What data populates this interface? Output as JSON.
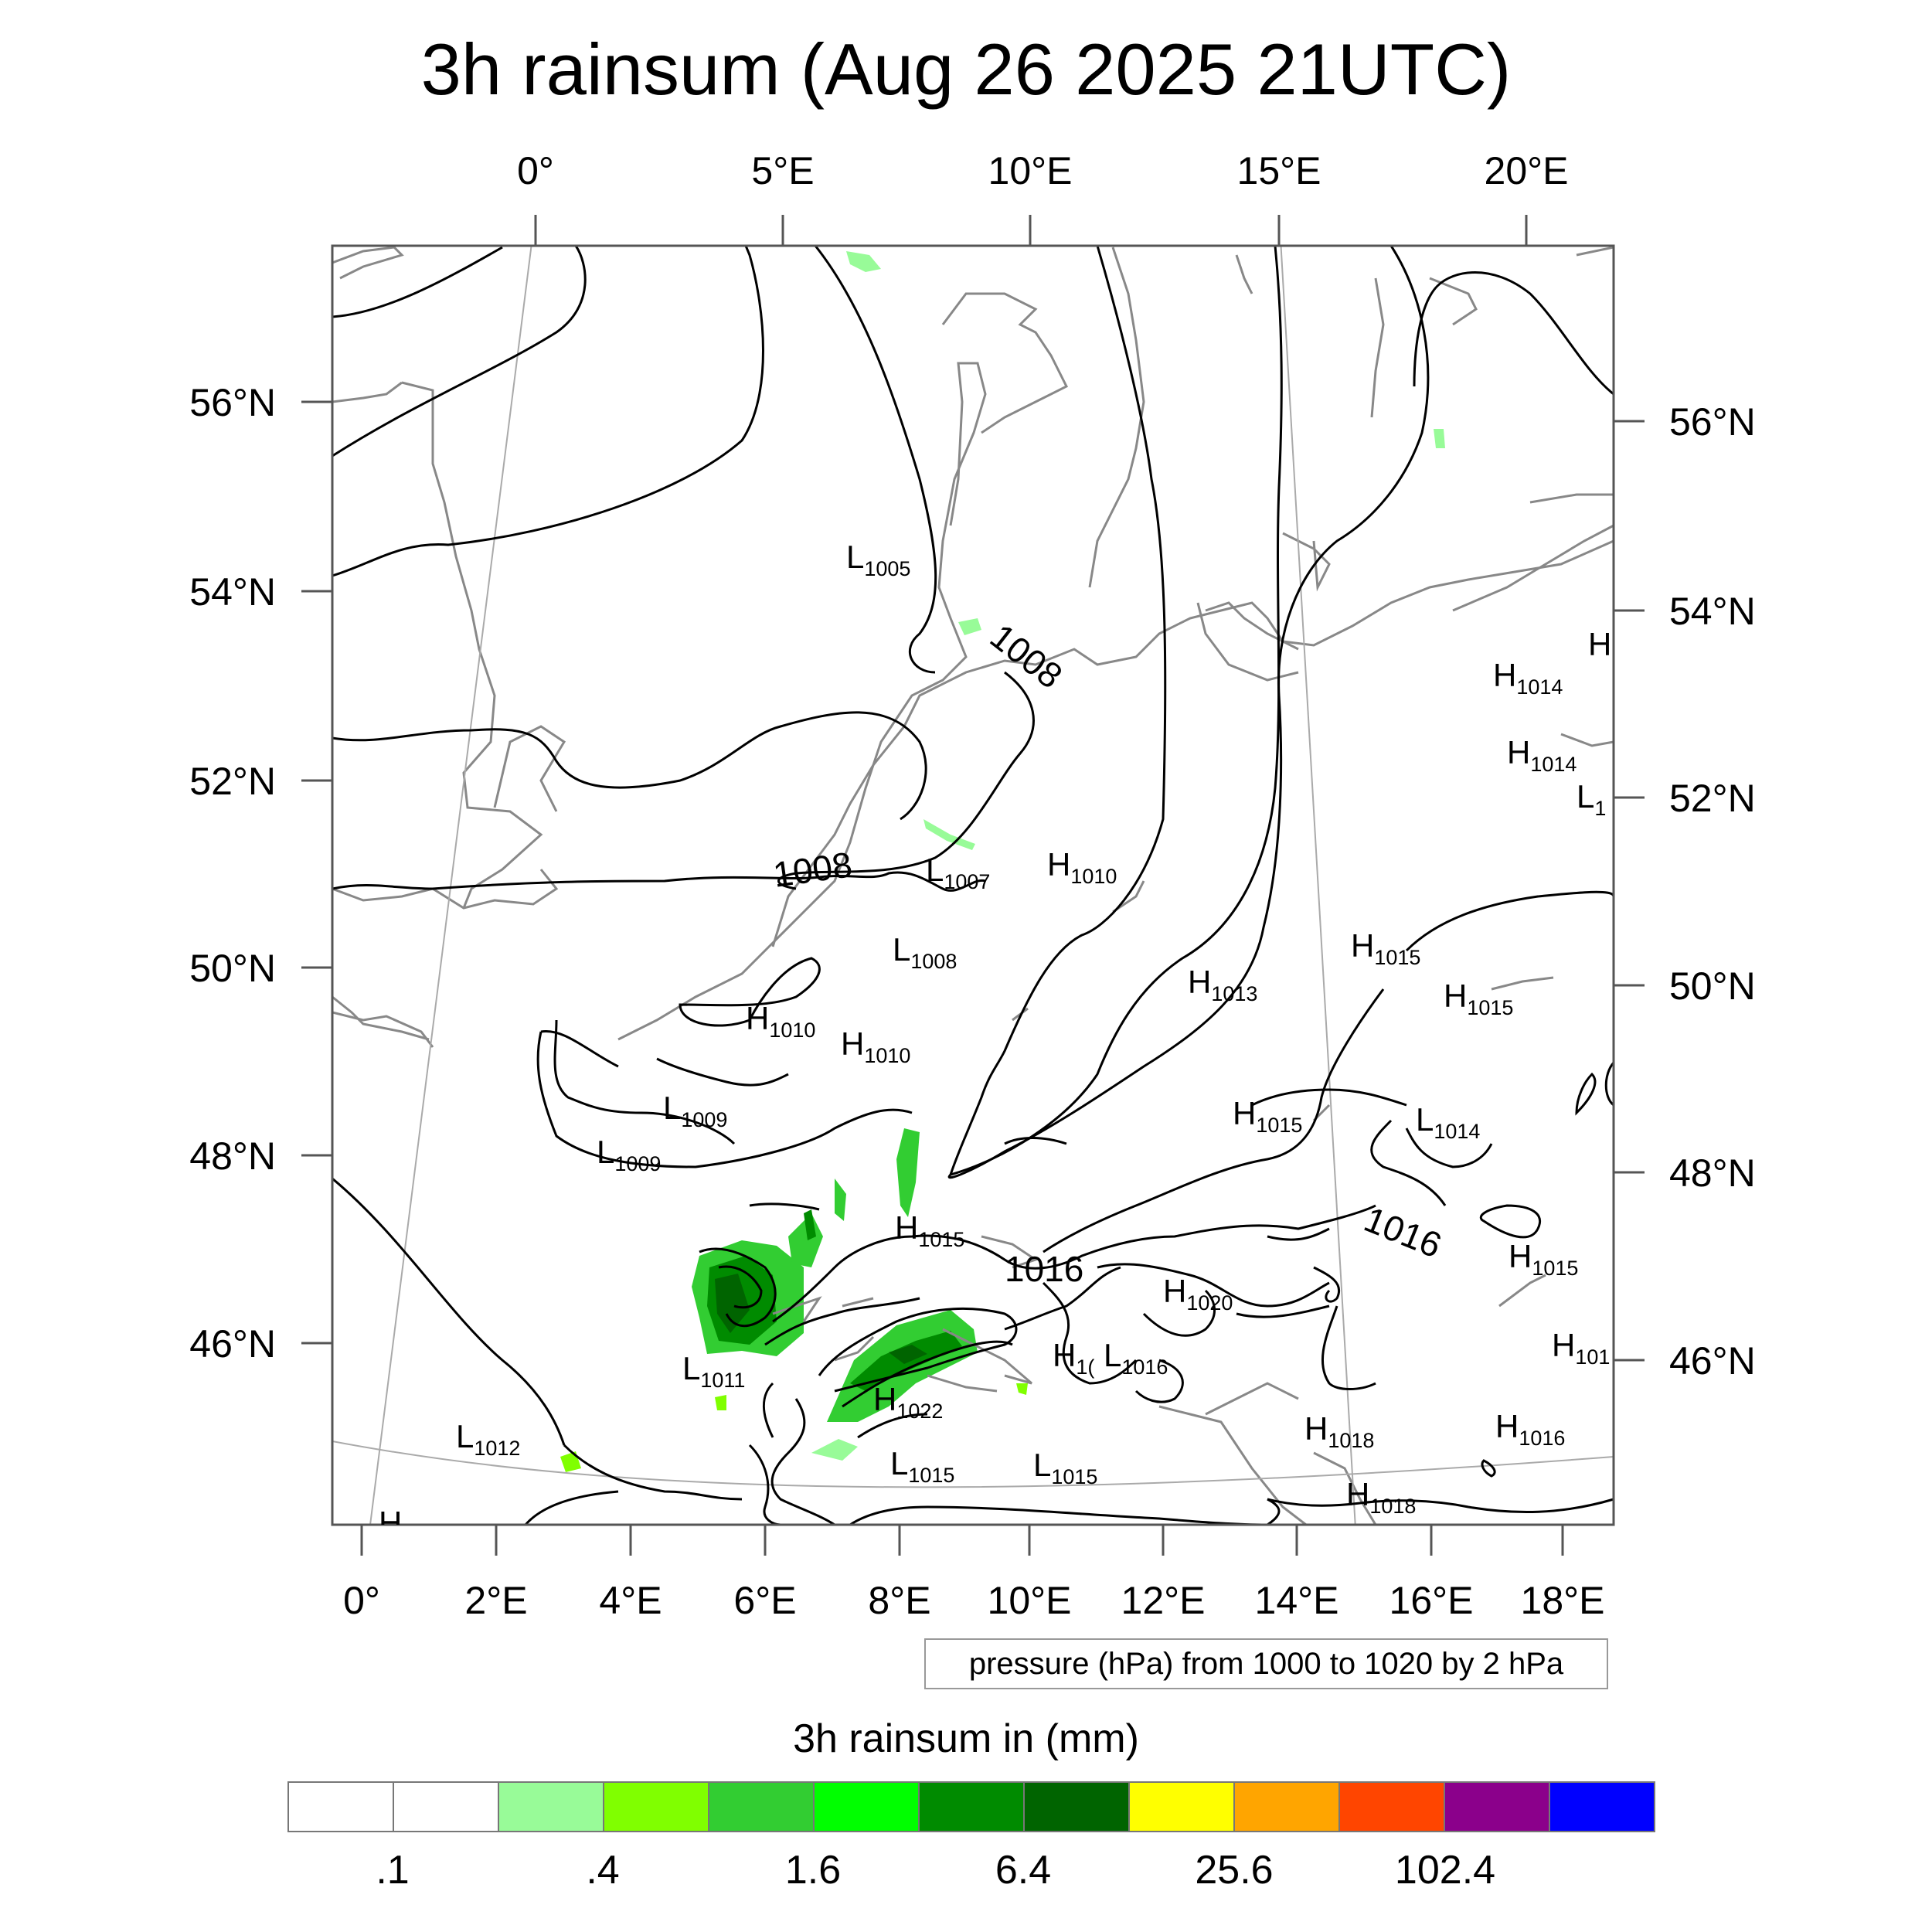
{
  "title": "3h rainsum (Aug 26 2025 21UTC)",
  "top_ticks": [
    "0°",
    "5°E",
    "10°E",
    "15°E",
    "20°E"
  ],
  "bottom_ticks": [
    "0°",
    "2°E",
    "4°E",
    "6°E",
    "8°E",
    "10°E",
    "12°E",
    "14°E",
    "16°E",
    "18°E"
  ],
  "left_ticks": [
    "56°N",
    "54°N",
    "52°N",
    "50°N",
    "48°N",
    "46°N"
  ],
  "right_ticks": [
    "56°N",
    "54°N",
    "52°N",
    "50°N",
    "48°N",
    "46°N"
  ],
  "pressure_centers": [
    {
      "letter": "L",
      "value": "1005"
    },
    {
      "letter": "L",
      "value": "1007"
    },
    {
      "letter": "H",
      "value": "1010"
    },
    {
      "letter": "L",
      "value": "1008"
    },
    {
      "letter": "H",
      "value": "1010"
    },
    {
      "letter": "H",
      "value": "1010"
    },
    {
      "letter": "H",
      "value": "1013"
    },
    {
      "letter": "H",
      "value": "1015"
    },
    {
      "letter": "H",
      "value": "1015"
    },
    {
      "letter": "H",
      "value": "1014"
    },
    {
      "letter": "H",
      "value": "1014"
    },
    {
      "letter": "L",
      "value": "1"
    },
    {
      "letter": "L",
      "value": "1009"
    },
    {
      "letter": "L",
      "value": "1009"
    },
    {
      "letter": "H",
      "value": "1015"
    },
    {
      "letter": "L",
      "value": "1014"
    },
    {
      "letter": "H",
      "value": "1015"
    },
    {
      "letter": "H",
      "value": "1015"
    },
    {
      "letter": "H",
      "value": "1020"
    },
    {
      "letter": "L",
      "value": "1011"
    },
    {
      "letter": "H",
      "value": "1("
    },
    {
      "letter": "L",
      "value": "1016"
    },
    {
      "letter": "H",
      "value": "1022"
    },
    {
      "letter": "H",
      "value": "101"
    },
    {
      "letter": "L",
      "value": "1012"
    },
    {
      "letter": "L",
      "value": "1015"
    },
    {
      "letter": "L",
      "value": "1015"
    },
    {
      "letter": "H",
      "value": "1018"
    },
    {
      "letter": "H",
      "value": "1018"
    },
    {
      "letter": "H",
      "value": "1016"
    },
    {
      "letter": "H",
      "value": ""
    },
    {
      "letter": "H",
      "value": ""
    }
  ],
  "contour_labels": [
    "1008",
    "1008",
    "1016",
    "1016"
  ],
  "info_text": "pressure (hPa) from 1000 to 1020 by 2 hPa",
  "colorbar": {
    "title": "3h rainsum in (mm)",
    "colors": [
      "#ffffff",
      "#ffffff",
      "#98fb98",
      "#80ff00",
      "#32cd32",
      "#00ff00",
      "#008b00",
      "#006400",
      "#ffff00",
      "#ffa500",
      "#ff4500",
      "#8b008b",
      "#0000ff"
    ],
    "labels": [
      ".1",
      ".4",
      "1.6",
      "6.4",
      "25.6",
      "102.4"
    ]
  }
}
